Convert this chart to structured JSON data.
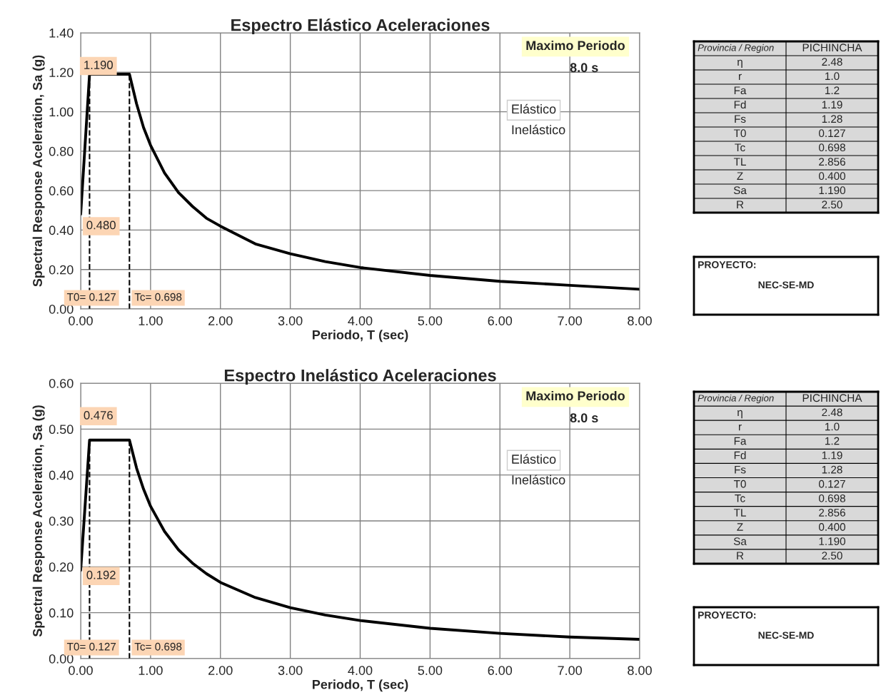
{
  "chart_data": [
    {
      "type": "line",
      "title": "Espectro Elástico Aceleraciones",
      "xlabel": "Periodo, T (sec)",
      "ylabel": "Spectral Response Aceleration, Sa (g)",
      "x": [
        0,
        0.127,
        0.698,
        0.8,
        0.9,
        1.0,
        1.2,
        1.4,
        1.6,
        1.8,
        2.0,
        2.5,
        3.0,
        3.5,
        4.0,
        5.0,
        6.0,
        7.0,
        8.0
      ],
      "series": [
        {
          "color": "#000000",
          "values": [
            0.48,
            1.19,
            1.19,
            1.04,
            0.92,
            0.83,
            0.69,
            0.59,
            0.52,
            0.46,
            0.42,
            0.33,
            0.28,
            0.24,
            0.21,
            0.17,
            0.14,
            0.12,
            0.1
          ]
        }
      ],
      "xlim": [
        0,
        8
      ],
      "ylim": [
        0,
        1.4
      ],
      "xticks": [
        {
          "value": 0,
          "label": "0.00"
        },
        {
          "value": 1,
          "label": "1.00"
        },
        {
          "value": 2,
          "label": "2.00"
        },
        {
          "value": 3,
          "label": "3.00"
        },
        {
          "value": 4,
          "label": "4.00"
        },
        {
          "value": 5,
          "label": "5.00"
        },
        {
          "value": 6,
          "label": "6.00"
        },
        {
          "value": 7,
          "label": "7.00"
        },
        {
          "value": 8,
          "label": "8.00"
        }
      ],
      "yticks": [
        {
          "value": 0,
          "label": "0.00"
        },
        {
          "value": 0.2,
          "label": "0.20"
        },
        {
          "value": 0.4,
          "label": "0.40"
        },
        {
          "value": 0.6,
          "label": "0.60"
        },
        {
          "value": 0.8,
          "label": "0.80"
        },
        {
          "value": 1.0,
          "label": "1.00"
        },
        {
          "value": 1.2,
          "label": "1.20"
        },
        {
          "value": 1.4,
          "label": "1.40"
        }
      ],
      "grid": true,
      "marker": "none",
      "line_style": "solid",
      "ref_lines": [
        {
          "axis": "x",
          "value": 0.127,
          "label": "T0= 0.127",
          "line_style": "dashed",
          "color": "#000000"
        },
        {
          "axis": "x",
          "value": 0.698,
          "label": "Tc= 0.698",
          "line_style": "dashed",
          "color": "#000000"
        }
      ],
      "annotations": [
        "1.190",
        "0.480",
        "Maximo Periodo",
        "8.0 s",
        "Elástico",
        "Inelástico"
      ]
    },
    {
      "type": "other",
      "annotations": [
        "Provincia / Region",
        "PICHINCHA",
        "η",
        "2.48",
        "r",
        "1.0",
        "Fa",
        "1.2",
        "Fd",
        "1.19",
        "Fs",
        "1.28",
        "T0",
        "0.127",
        "Tc",
        "0.698",
        "TL",
        "2.856",
        "Z",
        "0.400",
        "Sa",
        "1.190",
        "R",
        "2.50"
      ]
    },
    {
      "type": "other",
      "annotations": [
        "PROYECTO:",
        "NEC-SE-MD"
      ]
    },
    {
      "type": "line",
      "title": "Espectro Inelástico Aceleraciones",
      "xlabel": "Periodo, T (sec)",
      "ylabel": "Spectral Response Aceleration, Sa (g)",
      "x": [
        0,
        0.127,
        0.698,
        0.8,
        0.9,
        1.0,
        1.2,
        1.4,
        1.6,
        1.8,
        2.0,
        2.5,
        3.0,
        3.5,
        4.0,
        5.0,
        6.0,
        7.0,
        8.0
      ],
      "series": [
        {
          "color": "#000000",
          "values": [
            0.192,
            0.476,
            0.476,
            0.415,
            0.369,
            0.332,
            0.277,
            0.237,
            0.208,
            0.185,
            0.166,
            0.133,
            0.111,
            0.095,
            0.083,
            0.066,
            0.055,
            0.047,
            0.042
          ]
        }
      ],
      "xlim": [
        0,
        8
      ],
      "ylim": [
        0,
        0.6
      ],
      "xticks": [
        {
          "value": 0,
          "label": "0.00"
        },
        {
          "value": 1,
          "label": "1.00"
        },
        {
          "value": 2,
          "label": "2.00"
        },
        {
          "value": 3,
          "label": "3.00"
        },
        {
          "value": 4,
          "label": "4.00"
        },
        {
          "value": 5,
          "label": "5.00"
        },
        {
          "value": 6,
          "label": "6.00"
        },
        {
          "value": 7,
          "label": "7.00"
        },
        {
          "value": 8,
          "label": "8.00"
        }
      ],
      "yticks": [
        {
          "value": 0,
          "label": "0.00"
        },
        {
          "value": 0.1,
          "label": "0.10"
        },
        {
          "value": 0.2,
          "label": "0.20"
        },
        {
          "value": 0.3,
          "label": "0.30"
        },
        {
          "value": 0.4,
          "label": "0.40"
        },
        {
          "value": 0.5,
          "label": "0.50"
        },
        {
          "value": 0.6,
          "label": "0.60"
        }
      ],
      "grid": true,
      "marker": "none",
      "line_style": "solid",
      "ref_lines": [
        {
          "axis": "x",
          "value": 0.127,
          "label": "T0= 0.127",
          "line_style": "dashed",
          "color": "#000000"
        },
        {
          "axis": "x",
          "value": 0.698,
          "label": "Tc= 0.698",
          "line_style": "dashed",
          "color": "#000000"
        }
      ],
      "annotations": [
        "0.476",
        "0.192",
        "Maximo Periodo",
        "8.0 s",
        "Elástico",
        "Inelástico"
      ]
    },
    {
      "type": "other",
      "annotations": [
        "Provincia / Region",
        "PICHINCHA",
        "η",
        "2.48",
        "r",
        "1.0",
        "Fa",
        "1.2",
        "Fd",
        "1.19",
        "Fs",
        "1.28",
        "T0",
        "0.127",
        "Tc",
        "0.698",
        "TL",
        "2.856",
        "Z",
        "0.400",
        "Sa",
        "1.190",
        "R",
        "2.50"
      ]
    },
    {
      "type": "other",
      "annotations": [
        "PROYECTO:",
        "NEC-SE-MD"
      ]
    }
  ]
}
